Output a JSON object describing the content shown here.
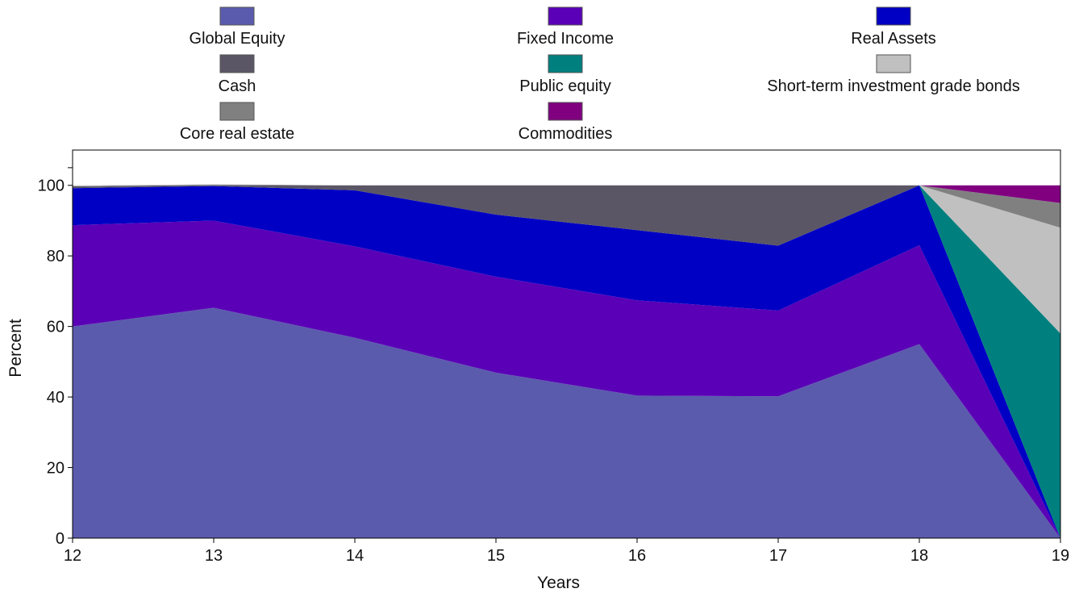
{
  "chart_data": {
    "type": "area",
    "stacked": true,
    "title": "",
    "xlabel": "Years",
    "ylabel": "Percent",
    "x": [
      12,
      13,
      14,
      15,
      16,
      17,
      18,
      19
    ],
    "xlim": [
      12,
      19
    ],
    "ylim": [
      0,
      110
    ],
    "yticks": [
      0,
      20,
      40,
      60,
      80,
      100
    ],
    "grid": false,
    "legend_position": "top",
    "series": [
      {
        "name": "Global Equity",
        "color": "#5b5bad",
        "values": [
          60,
          65.3,
          56.8,
          46.9,
          40.4,
          40.2,
          55,
          0
        ]
      },
      {
        "name": "Fixed Income",
        "color": "#5a00b6",
        "values": [
          28.7,
          24.7,
          25.9,
          27.2,
          27.0,
          24.3,
          28,
          0
        ]
      },
      {
        "name": "Real Assets",
        "color": "#0000c4",
        "values": [
          10.5,
          9.8,
          15.9,
          17.6,
          19.9,
          18.4,
          17,
          0
        ]
      },
      {
        "name": "Cash",
        "color": "#5a5666",
        "values": [
          0.5,
          0.3,
          1.4,
          8.3,
          12.7,
          17.1,
          0,
          0
        ]
      },
      {
        "name": "Public equity",
        "color": "#007f7f",
        "values": [
          0,
          0,
          0,
          0,
          0,
          0,
          0,
          58
        ]
      },
      {
        "name": "Short-term investment grade bonds",
        "color": "#c0c0c0",
        "values": [
          0.3,
          0.2,
          0,
          0,
          0,
          0,
          0,
          30
        ]
      },
      {
        "name": "Core real estate",
        "color": "#808080",
        "values": [
          0,
          0,
          0,
          0,
          0,
          0,
          0,
          7
        ]
      },
      {
        "name": "Commodities",
        "color": "#800080",
        "values": [
          0,
          0,
          0,
          0,
          0,
          0,
          0,
          5
        ]
      }
    ]
  }
}
